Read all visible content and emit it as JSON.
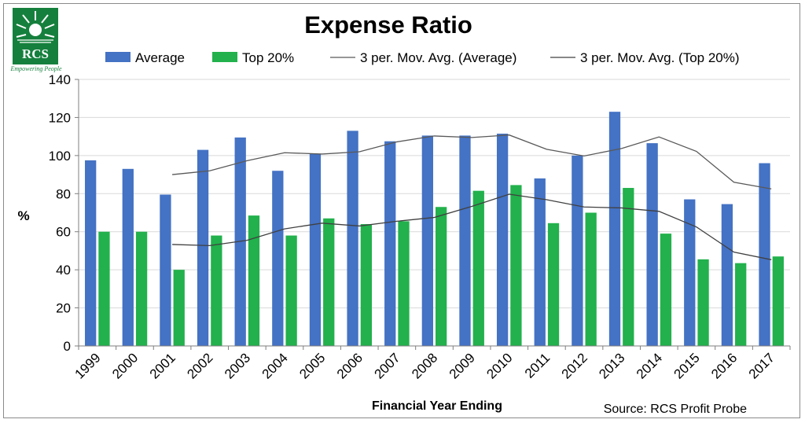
{
  "logo": {
    "text": "RCS",
    "tagline": "Empowering People"
  },
  "chart_data": {
    "type": "bar",
    "title": "Expense Ratio",
    "xlabel": "Financial Year Ending",
    "ylabel": "%",
    "ylim": [
      0,
      140
    ],
    "yticks": [
      0,
      20,
      40,
      60,
      80,
      100,
      120,
      140
    ],
    "grid": true,
    "legend_position": "top",
    "source": "Source: RCS Profit Probe",
    "categories": [
      "1999",
      "2000",
      "2001",
      "2002",
      "2003",
      "2004",
      "2005",
      "2006",
      "2007",
      "2008",
      "2009",
      "2010",
      "2011",
      "2012",
      "2013",
      "2014",
      "2015",
      "2016",
      "2017"
    ],
    "series": [
      {
        "name": "Average",
        "type": "bar",
        "color": "#4472C4",
        "values": [
          97.5,
          93,
          79.5,
          103,
          109.5,
          92,
          101,
          113,
          107.5,
          110.5,
          110.5,
          111.5,
          88,
          100,
          123,
          106.5,
          77,
          74.5,
          96
        ]
      },
      {
        "name": "Top 20%",
        "type": "bar",
        "color": "#22B14C",
        "values": [
          60,
          60,
          40,
          58,
          68.5,
          58,
          67,
          64,
          65.5,
          73,
          81.5,
          84.5,
          64.5,
          70,
          83,
          59,
          45.5,
          43.5,
          47
        ]
      },
      {
        "name": "3 per. Mov. Avg. (Average)",
        "type": "line",
        "color": "#595959",
        "values": [
          null,
          null,
          90,
          92,
          97.3,
          101.5,
          100.8,
          102,
          107.2,
          110.3,
          109.5,
          110.8,
          103.3,
          99.8,
          103.7,
          109.8,
          102.2,
          86,
          82.5
        ]
      },
      {
        "name": "3 per. Mov. Avg. (Top 20%)",
        "type": "line",
        "color": "#404040",
        "values": [
          null,
          null,
          53.3,
          52.7,
          55.5,
          61.5,
          64.5,
          63,
          65.5,
          67.5,
          73.3,
          79.7,
          76.8,
          73,
          72.5,
          70.7,
          62.5,
          49.3,
          45.3
        ]
      }
    ]
  }
}
